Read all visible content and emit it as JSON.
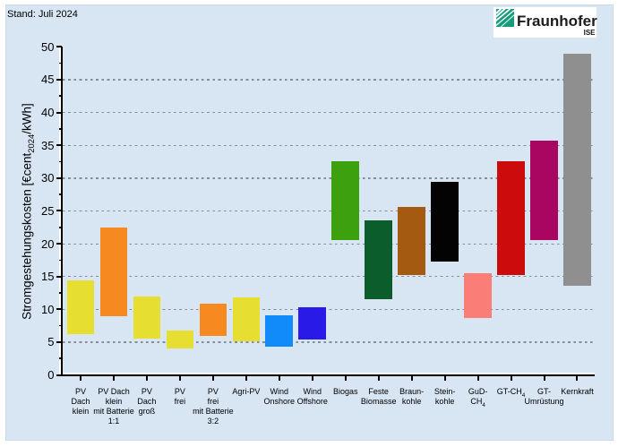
{
  "header": {
    "date_note": "Stand: Juli 2024"
  },
  "logo": {
    "brand": "Fraunhofer",
    "institute": "ISE",
    "green": "#169c7d"
  },
  "chart_data": {
    "type": "bar",
    "subtype": "floating-range-bar",
    "title": "",
    "xlabel": "",
    "ylabel": "Stromgestehungskosten [€cent~2024~/kWh]",
    "ylim": [
      0,
      50
    ],
    "ytick_labels": [
      "0",
      "5",
      "10",
      "15",
      "20",
      "25",
      "30",
      "35",
      "40",
      "45",
      "50"
    ],
    "ytick_values": [
      0,
      5,
      10,
      15,
      20,
      25,
      30,
      35,
      40,
      45,
      50
    ],
    "yminor_step": 2.5,
    "grid": "horizontal dashed at 5..45",
    "legend": "none",
    "categories": [
      {
        "label_lines": [
          "PV",
          "Dach",
          "klein"
        ],
        "min": 6.2,
        "max": 14.4,
        "color": "#e6de30"
      },
      {
        "label_lines": [
          "PV Dach",
          "klein",
          "mit Batterie",
          "1:1"
        ],
        "min": 9.0,
        "max": 22.5,
        "color": "#f68a20"
      },
      {
        "label_lines": [
          "PV",
          "Dach",
          "groß"
        ],
        "min": 5.6,
        "max": 12.0,
        "color": "#e6de30"
      },
      {
        "label_lines": [
          "PV",
          "frei"
        ],
        "min": 4.1,
        "max": 6.8,
        "color": "#e6de30"
      },
      {
        "label_lines": [
          "PV",
          "frei",
          "mit Batterie",
          "3:2"
        ],
        "min": 6.0,
        "max": 10.8,
        "color": "#f68a20"
      },
      {
        "label_lines": [
          "Agri-PV"
        ],
        "min": 5.2,
        "max": 11.8,
        "color": "#e6de30"
      },
      {
        "label_lines": [
          "Wind",
          "Onshore"
        ],
        "min": 4.3,
        "max": 9.1,
        "color": "#128bfa"
      },
      {
        "label_lines": [
          "Wind",
          "Offshore"
        ],
        "min": 5.4,
        "max": 10.3,
        "color": "#2a1ae8"
      },
      {
        "label_lines": [
          "Biogas"
        ],
        "min": 20.5,
        "max": 32.6,
        "color": "#3da00f"
      },
      {
        "label_lines": [
          "Feste",
          "Biomasse"
        ],
        "min": 11.5,
        "max": 23.5,
        "color": "#0b5e2b"
      },
      {
        "label_lines": [
          "Braun-",
          "kohle"
        ],
        "min": 15.2,
        "max": 25.6,
        "color": "#a45a10"
      },
      {
        "label_lines": [
          "Stein-",
          "kohle"
        ],
        "min": 17.3,
        "max": 29.4,
        "color": "#030303"
      },
      {
        "label_lines": [
          "GuD-",
          "CH~4~"
        ],
        "min": 8.7,
        "max": 15.5,
        "color": "#fa7e77"
      },
      {
        "label_lines": [
          "GT-CH~4~"
        ],
        "min": 15.3,
        "max": 32.6,
        "color": "#cc0c0c"
      },
      {
        "label_lines": [
          "GT-",
          "Umrüstung"
        ],
        "min": 20.5,
        "max": 35.7,
        "color": "#a80660"
      },
      {
        "label_lines": [
          "Kernkraft"
        ],
        "min": 13.6,
        "max": 49.0,
        "color": "#8f8f8f"
      }
    ]
  },
  "colors": {
    "panel_background": "#d8e5f3",
    "panel_border": "#c9daec",
    "gridline": "#8e969e",
    "axis": "#000000",
    "axis_highlight": "#ffffff",
    "text": "#000000",
    "logo_background": "#ffffff"
  }
}
